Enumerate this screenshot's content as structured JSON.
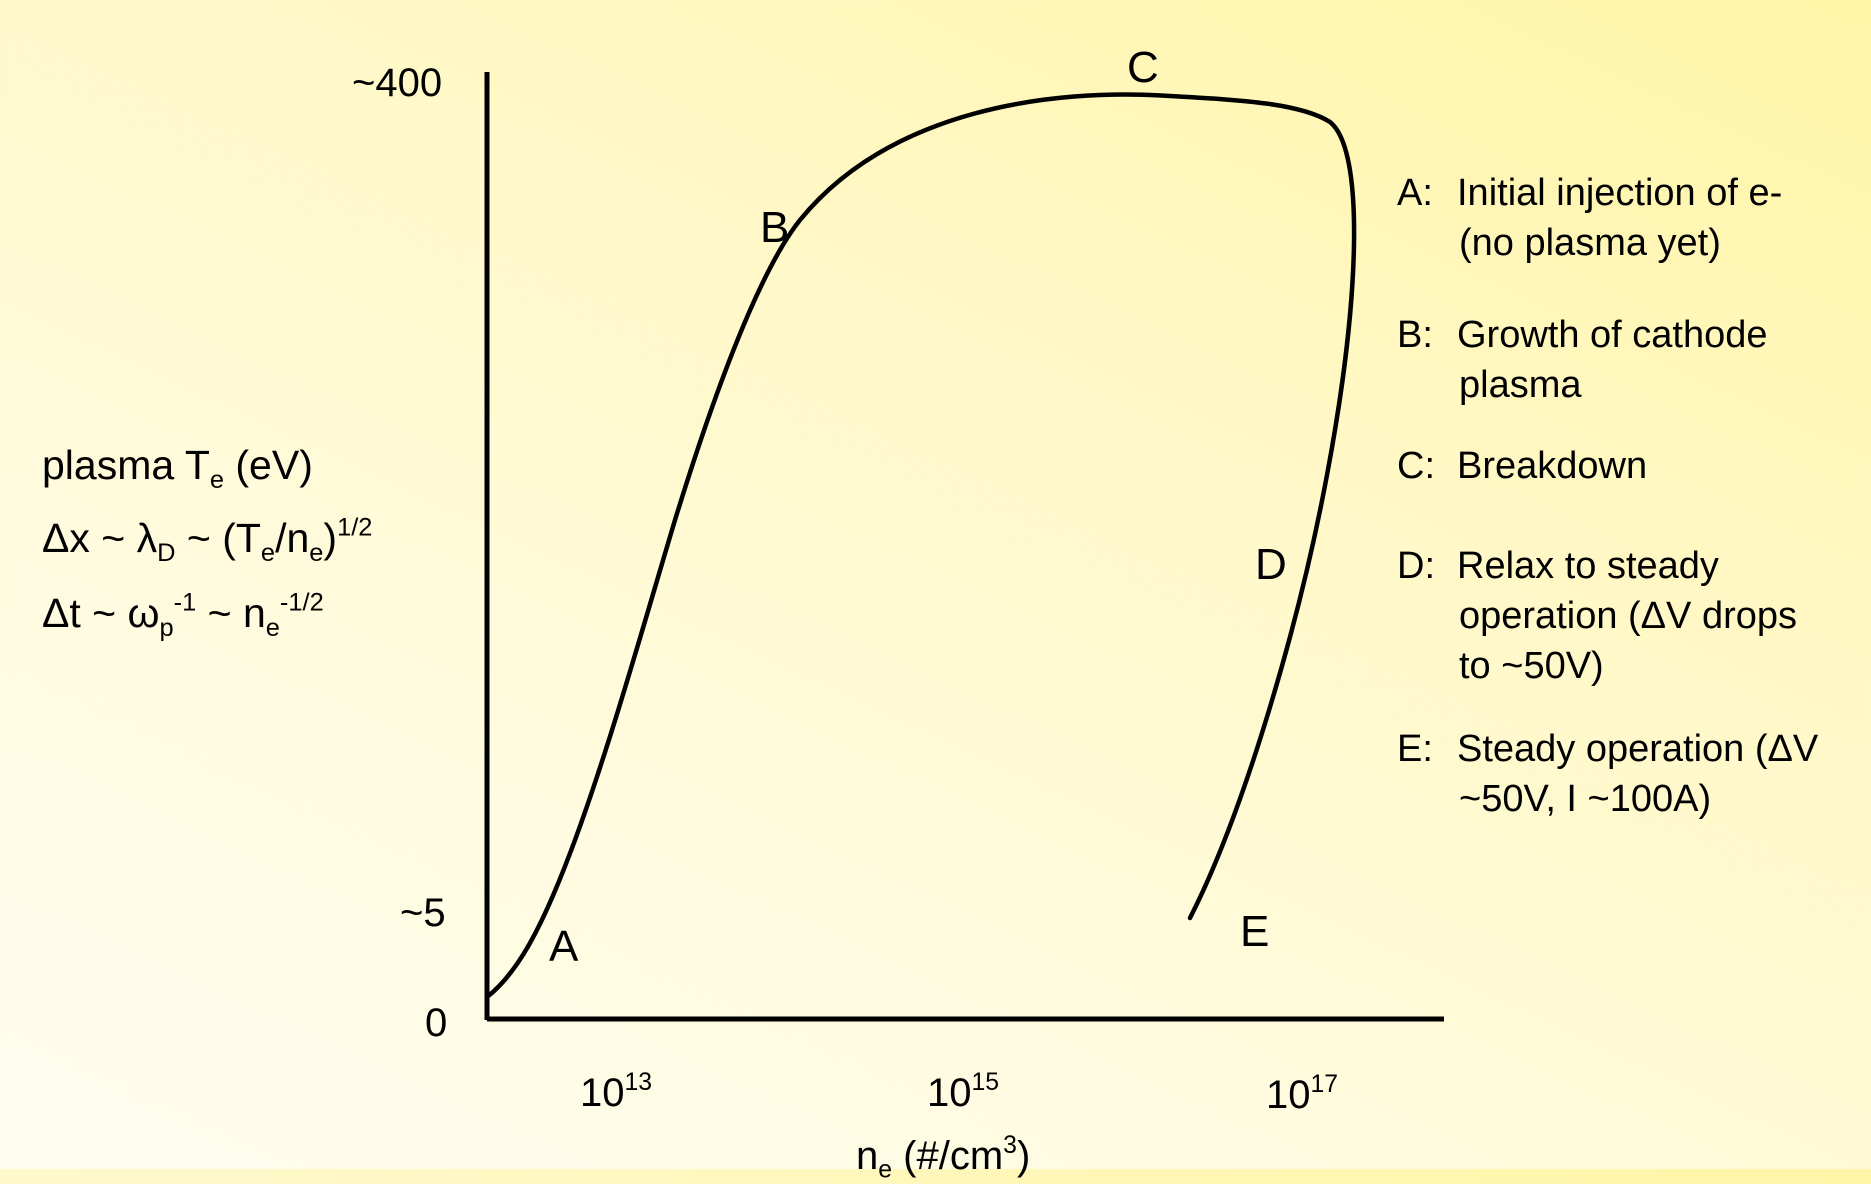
{
  "y_axis": {
    "tick_top": "~400",
    "tick_mid": "~5",
    "tick_zero": "0",
    "label_main": "plasma T",
    "label_main_sub": "e",
    "label_main_unit": " (eV)",
    "eq1_a": "Δx ~ λ",
    "eq1_sub_D": "D",
    "eq1_b": " ~ (T",
    "eq1_sub_e1": "e",
    "eq1_c": "/n",
    "eq1_sub_e2": "e",
    "eq1_d": ")",
    "eq1_sup": "1/2",
    "eq2_a": "Δt ~ ω",
    "eq2_sub_p": "p",
    "eq2_sup_1": "-1",
    "eq2_b": " ~ n",
    "eq2_sub_e": "e",
    "eq2_sup_2": "-1/2"
  },
  "x_axis": {
    "tick1_base": "10",
    "tick1_exp": "13",
    "tick2_base": "10",
    "tick2_exp": "15",
    "tick3_base": "10",
    "tick3_exp": "17",
    "label_n": "n",
    "label_sub": "e",
    "label_unit": " (#/cm",
    "label_sup": "3",
    "label_close": ")"
  },
  "points": {
    "A": "A",
    "B": "B",
    "C": "C",
    "D": "D",
    "E": "E"
  },
  "legend": {
    "A": {
      "key": "A:",
      "line1": "Initial injection of e-",
      "line2": "(no plasma yet)"
    },
    "B": {
      "key": "B:",
      "line1": "Growth of cathode",
      "line2": "plasma"
    },
    "C": {
      "key": "C:",
      "line1": "Breakdown"
    },
    "D": {
      "key": "D:",
      "line1": "Relax to steady",
      "line2": "operation (ΔV drops",
      "line3": "to ~50V)"
    },
    "E": {
      "key": "E:",
      "line1": "Steady operation (ΔV",
      "line2": "~50V, I ~100A)"
    }
  },
  "colors": {
    "background_top": "#fff5a6",
    "background_bottom": "#fffdf0",
    "ink": "#000000"
  }
}
